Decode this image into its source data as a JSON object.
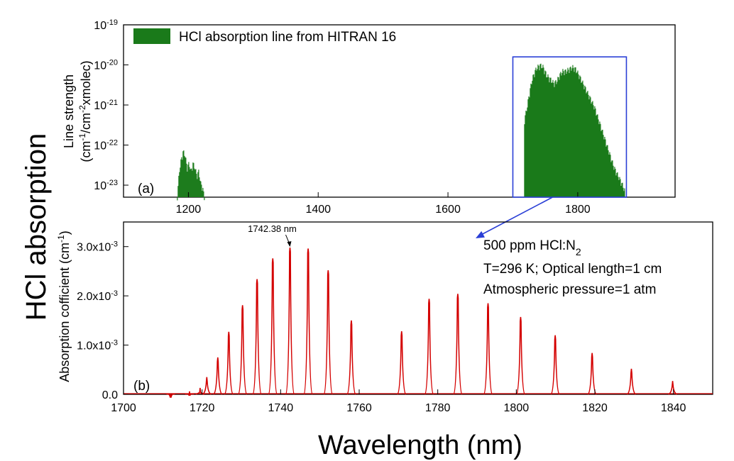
{
  "figure": {
    "ylabel_main": "HCl absorption",
    "xlabel_main": "Wavelength (nm)",
    "arrow_color": "#2a3fd6"
  },
  "chart_data": [
    {
      "type": "area",
      "panel_label": "(a)",
      "legend": "HCl absorption line from HITRAN 16",
      "ylabel_line1": "Line strength",
      "ylabel_line2": "(cm⁻¹/cm⁻²xmolec)",
      "ylabel_base": "(cm",
      "ylabel_mid1": "/cm",
      "ylabel_tail": "xmolec)",
      "ylabel_sup1": "-1",
      "ylabel_sup2": "-2",
      "xlim": [
        1100,
        1950
      ],
      "ylog_range": [
        -23.3,
        -19
      ],
      "xticks": [
        1200,
        1400,
        1600,
        1800
      ],
      "xtick_labels": [
        "1200",
        "1400",
        "1600",
        "1800"
      ],
      "yticks_exp": [
        -23,
        -22,
        -21,
        -20,
        -19
      ],
      "ytick_base": "10",
      "ytick_exponent_labels": [
        "-23",
        "-22",
        "-21",
        "-20",
        "-19"
      ],
      "color": "#1a7a1a",
      "band1": {
        "x": [
          1183,
          1186,
          1189,
          1192,
          1195,
          1198,
          1201,
          1204,
          1207,
          1210,
          1213,
          1216,
          1219,
          1222,
          1225
        ],
        "log_strength": [
          -23.2,
          -22.6,
          -22.3,
          -22.1,
          -22.2,
          -22.5,
          -22.4,
          -22.6,
          -22.4,
          -22.5,
          -22.7,
          -22.6,
          -22.9,
          -23.0,
          -23.3
        ]
      },
      "band2": {
        "x": [
          1718,
          1722,
          1726,
          1730,
          1734,
          1738,
          1742,
          1747,
          1752,
          1758,
          1763,
          1768,
          1772,
          1777,
          1782,
          1787,
          1792,
          1797,
          1802,
          1808,
          1814,
          1820,
          1826,
          1832,
          1838,
          1844,
          1850,
          1856,
          1862,
          1868,
          1873
        ],
        "log_strength": [
          -21.3,
          -21.0,
          -20.6,
          -20.3,
          -20.1,
          -20.0,
          -19.95,
          -20.0,
          -20.2,
          -20.3,
          -20.4,
          -20.35,
          -20.2,
          -20.1,
          -20.1,
          -20.05,
          -20.0,
          -20.05,
          -20.2,
          -20.4,
          -20.6,
          -20.8,
          -21.0,
          -21.3,
          -21.6,
          -21.9,
          -22.2,
          -22.5,
          -22.7,
          -22.9,
          -23.1
        ]
      },
      "zoom_box_x": [
        1700,
        1875
      ],
      "zoom_box_log_y": [
        -23.3,
        -19.8
      ]
    },
    {
      "type": "line",
      "panel_label": "(b)",
      "ylabel": "Absorption cofficient (cm⁻¹)",
      "ylabel_base": "Absorption cofficient (cm",
      "ylabel_sup": "-1",
      "ylabel_tail": ")",
      "xlim": [
        1700,
        1850
      ],
      "ylim": [
        0,
        0.0035
      ],
      "xticks": [
        1700,
        1720,
        1740,
        1760,
        1780,
        1800,
        1820,
        1840
      ],
      "xtick_labels": [
        "1700",
        "1720",
        "1740",
        "1760",
        "1780",
        "1800",
        "1820",
        "1840"
      ],
      "yticks": [
        0,
        0.001,
        0.002,
        0.003
      ],
      "ytick_labels": [
        "0.0",
        "1.0x10",
        "2.0x10",
        "3.0x10"
      ],
      "ytick_exponent": "-3",
      "color": "#d40000",
      "peaks": {
        "x": [
          1712,
          1716.8,
          1719.5,
          1721.2,
          1724.0,
          1726.8,
          1730.3,
          1734.0,
          1738.0,
          1742.38,
          1747.0,
          1752.1,
          1758.0,
          1770.8,
          1777.8,
          1785.1,
          1792.8,
          1801.1,
          1809.9,
          1819.3,
          1829.3,
          1839.8
        ],
        "heights": [
          2e-05,
          6e-05,
          0.00013,
          0.00035,
          0.00075,
          0.00127,
          0.00181,
          0.00234,
          0.00276,
          0.00298,
          0.00296,
          0.00252,
          0.0015,
          0.00128,
          0.00194,
          0.00204,
          0.00185,
          0.00157,
          0.0012,
          0.00084,
          0.00052,
          0.00027
        ]
      },
      "annotation": "1742.38 nm",
      "conditions": [
        "500 ppm HCl:N",
        "T=296 K; Optical length=1 cm",
        "Atmospheric pressure=1 atm"
      ],
      "conditions_subscript": "2"
    }
  ]
}
